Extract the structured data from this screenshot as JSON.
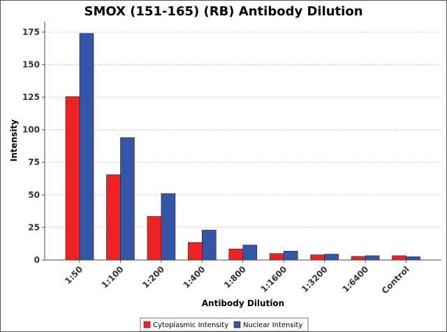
{
  "chart_data": {
    "type": "bar",
    "title": "SMOX (151-165) (RB) Antibody Dilution",
    "xlabel": "Antibody Dilution",
    "ylabel": "Intensity",
    "categories": [
      "1:50",
      "1:100",
      "1:200",
      "1:400",
      "1:800",
      "1:1600",
      "1:3200",
      "1:6400",
      "Control"
    ],
    "series": [
      {
        "name": "Cytoplasmic Intensity",
        "color": "#ee2222",
        "values": [
          125.5,
          65.5,
          33.5,
          13.5,
          8.5,
          5.0,
          4.0,
          2.8,
          3.3
        ]
      },
      {
        "name": "Nuclear Intensity",
        "color": "#3355aa",
        "values": [
          174,
          94,
          51,
          23,
          11.5,
          6.8,
          4.5,
          3.3,
          2.5
        ]
      }
    ],
    "ylim": [
      0,
      183
    ],
    "yticks": [
      0,
      25,
      50,
      75,
      100,
      125,
      150,
      175
    ],
    "grid": true,
    "legend_position": "bottom"
  }
}
